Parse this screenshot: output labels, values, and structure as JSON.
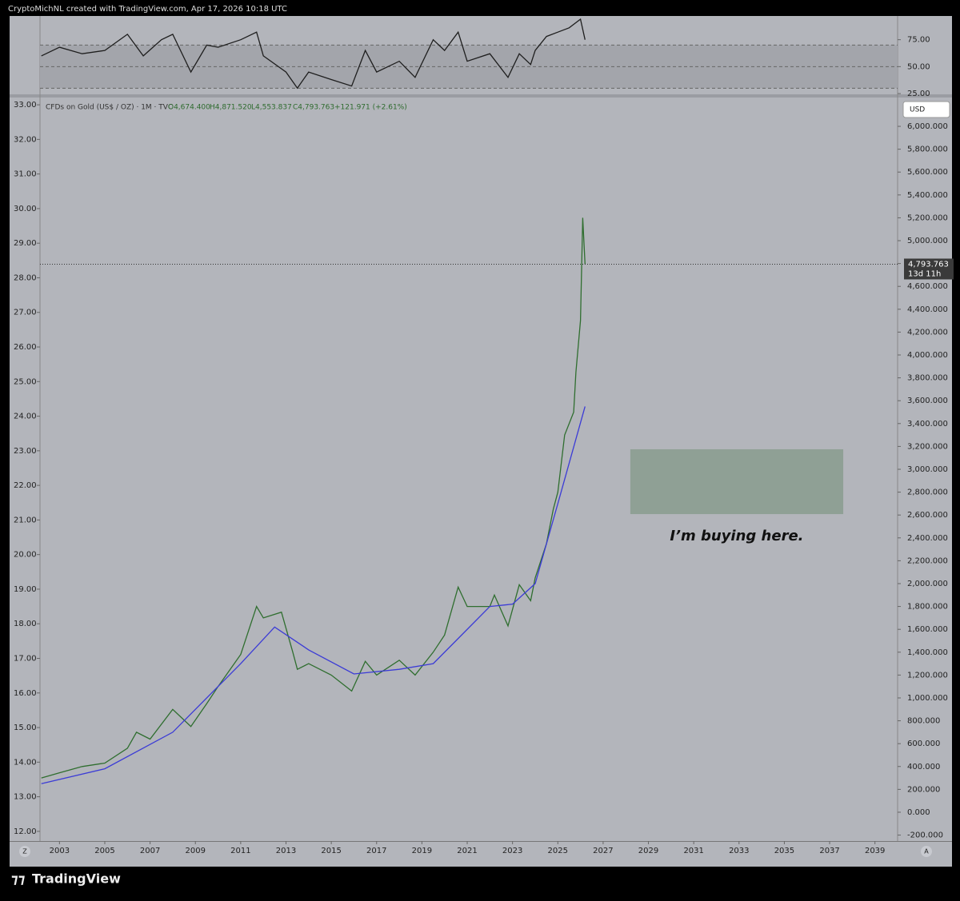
{
  "header": "CryptoMichNL created with TradingView.com, Apr 17, 2026 10:18 UTC",
  "legend": {
    "symbol": "CFDs on Gold (US$ / OZ) · 1M · TVC",
    "open": "O4,674.400",
    "high": "H4,871.520",
    "low": "L4,553.837",
    "close": "C4,793.763",
    "change": "+121.971 (+2.61%)"
  },
  "currency": "USD",
  "footer": "TradingView",
  "buttons": [
    "Z",
    "A"
  ],
  "chart_data": [
    {
      "type": "line",
      "name": "RSI",
      "xlim": [
        2002.14,
        2040
      ],
      "ylim": [
        24.3,
        97
      ],
      "yticks": [
        {
          "value": 75,
          "label": "75.00"
        },
        {
          "value": 50,
          "label": "50.00"
        },
        {
          "value": 25,
          "label": "25.00"
        }
      ],
      "levels": [
        70,
        50,
        30
      ],
      "series": [
        {
          "color": "#1e1e1e",
          "x": [
            2002.2,
            2003,
            2004,
            2005,
            2006,
            2006.7,
            2007.5,
            2008,
            2008.8,
            2009.5,
            2010,
            2011,
            2011.7,
            2012,
            2013,
            2013.5,
            2014,
            2015,
            2015.9,
            2016.5,
            2017,
            2018,
            2018.7,
            2019.5,
            2020,
            2020.6,
            2021,
            2022,
            2022.8,
            2023.3,
            2023.8,
            2024,
            2024.5,
            2025,
            2025.5,
            2026,
            2026.2
          ],
          "values": [
            60,
            68,
            62,
            65,
            80,
            60,
            75,
            80,
            45,
            70,
            68,
            75,
            82,
            60,
            45,
            30,
            45,
            38,
            32,
            65,
            45,
            55,
            40,
            75,
            65,
            82,
            55,
            62,
            40,
            62,
            52,
            65,
            78,
            82,
            86,
            94,
            75
          ]
        }
      ]
    },
    {
      "type": "line",
      "name": "price",
      "xlim": [
        2002.14,
        2040
      ],
      "ylim": [
        -252,
        6252
      ],
      "y2lim": [
        11.72,
        33.21
      ],
      "xticks": [
        2003,
        2005,
        2007,
        2009,
        2011,
        2013,
        2015,
        2017,
        2019,
        2021,
        2023,
        2025,
        2027,
        2029,
        2031,
        2033,
        2035,
        2037,
        2039
      ],
      "yticks": [
        {
          "value": 6000,
          "label": "6,000.000"
        },
        {
          "value": 5800,
          "label": "5,800.000"
        },
        {
          "value": 5600,
          "label": "5,600.000"
        },
        {
          "value": 5400,
          "label": "5,400.000"
        },
        {
          "value": 5200,
          "label": "5,200.000"
        },
        {
          "value": 5000,
          "label": "5,000.000"
        },
        {
          "value": 4800,
          "label": "4,800.000"
        },
        {
          "value": 4600,
          "label": "4,600.000"
        },
        {
          "value": 4400,
          "label": "4,400.000"
        },
        {
          "value": 4200,
          "label": "4,200.000"
        },
        {
          "value": 4000,
          "label": "4,000.000"
        },
        {
          "value": 3800,
          "label": "3,800.000"
        },
        {
          "value": 3600,
          "label": "3,600.000"
        },
        {
          "value": 3400,
          "label": "3,400.000"
        },
        {
          "value": 3200,
          "label": "3,200.000"
        },
        {
          "value": 3000,
          "label": "3,000.000"
        },
        {
          "value": 2800,
          "label": "2,800.000"
        },
        {
          "value": 2600,
          "label": "2,600.000"
        },
        {
          "value": 2400,
          "label": "2,400.000"
        },
        {
          "value": 2200,
          "label": "2,200.000"
        },
        {
          "value": 2000,
          "label": "2,000.000"
        },
        {
          "value": 1800,
          "label": "1,800.000"
        },
        {
          "value": 1600,
          "label": "1,600.000"
        },
        {
          "value": 1400,
          "label": "1,400.000"
        },
        {
          "value": 1200,
          "label": "1,200.000"
        },
        {
          "value": 1000,
          "label": "1,000.000"
        },
        {
          "value": 800,
          "label": "800.000"
        },
        {
          "value": 600,
          "label": "600.000"
        },
        {
          "value": 400,
          "label": "400.000"
        },
        {
          "value": 200,
          "label": "200.000"
        },
        {
          "value": 0,
          "label": "0.000"
        },
        {
          "value": -200,
          "label": "-200.000"
        }
      ],
      "y2ticks": [
        {
          "value": 33,
          "label": "33.00"
        },
        {
          "value": 32,
          "label": "32.00"
        },
        {
          "value": 31,
          "label": "31.00"
        },
        {
          "value": 30,
          "label": "30.00"
        },
        {
          "value": 29,
          "label": "29.00"
        },
        {
          "value": 28,
          "label": "28.00"
        },
        {
          "value": 27,
          "label": "27.00"
        },
        {
          "value": 26,
          "label": "26.00"
        },
        {
          "value": 25,
          "label": "25.00"
        },
        {
          "value": 24,
          "label": "24.00"
        },
        {
          "value": 23,
          "label": "23.00"
        },
        {
          "value": 22,
          "label": "22.00"
        },
        {
          "value": 21,
          "label": "21.00"
        },
        {
          "value": 20,
          "label": "20.00"
        },
        {
          "value": 19,
          "label": "19.00"
        },
        {
          "value": 18,
          "label": "18.00"
        },
        {
          "value": 17,
          "label": "17.00"
        },
        {
          "value": 16,
          "label": "16.00"
        },
        {
          "value": 15,
          "label": "15.00"
        },
        {
          "value": 14,
          "label": "14.00"
        },
        {
          "value": 13,
          "label": "13.00"
        },
        {
          "value": 12,
          "label": "12.00"
        }
      ],
      "series": [
        {
          "color": "#2f6e2f",
          "x": [
            2002.2,
            2003,
            2004,
            2005,
            2006,
            2006.4,
            2007,
            2008,
            2008.8,
            2009.5,
            2010,
            2011,
            2011.7,
            2012,
            2012.8,
            2013.3,
            2013.5,
            2014,
            2015,
            2015.9,
            2016.5,
            2017,
            2018,
            2018.7,
            2019.5,
            2020,
            2020.6,
            2021,
            2022,
            2022.2,
            2022.8,
            2023.3,
            2023.8,
            2024,
            2024.5,
            2024.8,
            2025,
            2025.3,
            2025.7,
            2025.8,
            2026,
            2026.1,
            2026.2
          ],
          "values": [
            300,
            345,
            400,
            430,
            560,
            700,
            640,
            900,
            750,
            950,
            1100,
            1380,
            1800,
            1700,
            1750,
            1400,
            1250,
            1300,
            1200,
            1060,
            1320,
            1200,
            1330,
            1200,
            1400,
            1550,
            1970,
            1800,
            1800,
            1900,
            1630,
            1990,
            1850,
            2050,
            2350,
            2650,
            2800,
            3300,
            3500,
            3850,
            4300,
            5200,
            4794
          ]
        },
        {
          "color": "#3b3bd6",
          "x": [
            2002.2,
            2005,
            2008,
            2011,
            2012.5,
            2014,
            2016,
            2018,
            2019.5,
            2020.5,
            2022,
            2023,
            2024,
            2025,
            2026.2
          ],
          "values": [
            250,
            380,
            700,
            1300,
            1620,
            1420,
            1210,
            1250,
            1300,
            1500,
            1800,
            1820,
            2000,
            2700,
            3550
          ]
        }
      ],
      "last_label": "4,793.763",
      "countdown": "13d 11h",
      "zone": {
        "x": [
          2028.2,
          2037.6
        ],
        "y": [
          2608,
          3175
        ],
        "color": "#8fa095"
      },
      "annotation": "I’m buying here."
    }
  ]
}
